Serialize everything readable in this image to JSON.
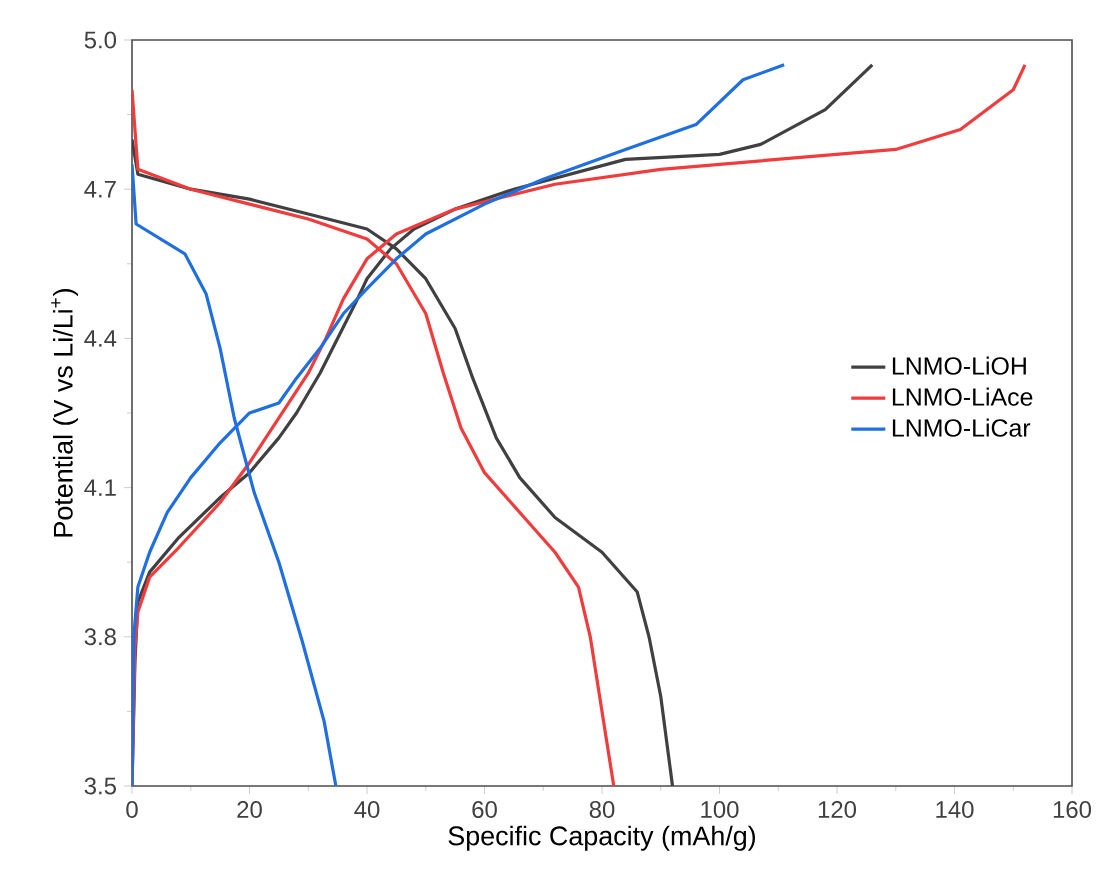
{
  "chart_data": {
    "type": "line",
    "xlabel": "Specific Capacity (mAh/g)",
    "ylabel": "Potential (V vs Li/Li$^{+}$)",
    "xlim": [
      0,
      160
    ],
    "xticks": [
      0,
      20,
      40,
      60,
      80,
      100,
      120,
      140,
      160
    ],
    "ylim": [
      3.5,
      5.0
    ],
    "yticks": [
      3.5,
      3.8,
      4.1,
      4.4,
      4.7,
      {
        "value": 5.0,
        "label": "5.0"
      }
    ],
    "grid": false,
    "legend": "right",
    "line_style": "solid",
    "marker": "none",
    "series": [
      {
        "name": "LNMO-LiOH",
        "color": "#404040",
        "x": [
          0,
          0.5,
          1,
          3,
          8,
          15,
          20,
          25,
          28,
          32,
          35,
          38,
          40,
          44,
          48,
          55,
          65,
          84,
          100,
          107,
          118,
          126
        ],
        "values": [
          3.5,
          3.75,
          3.87,
          3.93,
          4.0,
          4.08,
          4.13,
          4.2,
          4.25,
          4.33,
          4.4,
          4.47,
          4.52,
          4.58,
          4.62,
          4.66,
          4.7,
          4.76,
          4.77,
          4.79,
          4.86,
          4.95
        ]
      },
      {
        "color": "#404040",
        "x": [
          0,
          1,
          10,
          20,
          30,
          40,
          45,
          50,
          55,
          58,
          62,
          66,
          72,
          80,
          86,
          88,
          90,
          92
        ],
        "values": [
          4.8,
          4.73,
          4.7,
          4.68,
          4.65,
          4.62,
          4.58,
          4.52,
          4.42,
          4.32,
          4.2,
          4.12,
          4.04,
          3.97,
          3.89,
          3.8,
          3.68,
          3.5
        ]
      },
      {
        "name": "LNMO-LiAce",
        "color": "#f03c3c",
        "x": [
          0,
          0.5,
          1,
          3,
          8,
          15,
          20,
          25,
          30,
          33,
          36,
          40,
          45,
          55,
          72,
          90,
          110,
          130,
          141,
          150,
          152
        ],
        "values": [
          3.5,
          3.78,
          3.85,
          3.92,
          3.98,
          4.07,
          4.15,
          4.24,
          4.33,
          4.4,
          4.48,
          4.56,
          4.61,
          4.66,
          4.71,
          4.74,
          4.76,
          4.78,
          4.82,
          4.9,
          4.95
        ]
      },
      {
        "color": "#f03c3c",
        "x": [
          0,
          1,
          10,
          20,
          30,
          40,
          45,
          50,
          53,
          56,
          60,
          66,
          72,
          76,
          78,
          80,
          82
        ],
        "values": [
          4.9,
          4.74,
          4.7,
          4.67,
          4.64,
          4.6,
          4.55,
          4.45,
          4.33,
          4.22,
          4.13,
          4.05,
          3.97,
          3.9,
          3.8,
          3.65,
          3.5
        ]
      },
      {
        "name": "LNMO-LiCar",
        "color": "#1f6fe0",
        "x": [
          0,
          0.3,
          1,
          3,
          6,
          10,
          15,
          20,
          25,
          28,
          32,
          36,
          40,
          45,
          50,
          60,
          70,
          84,
          96,
          104,
          111
        ],
        "values": [
          3.5,
          3.8,
          3.9,
          3.97,
          4.05,
          4.12,
          4.19,
          4.25,
          4.27,
          4.32,
          4.38,
          4.45,
          4.5,
          4.56,
          4.61,
          4.67,
          4.72,
          4.78,
          4.83,
          4.92,
          4.95
        ]
      },
      {
        "color": "#1f6fe0",
        "x": [
          0,
          0.7,
          9,
          12.6,
          15,
          17.4,
          20.8,
          25,
          29,
          32.7,
          34.7
        ],
        "values": [
          4.75,
          4.63,
          4.57,
          4.49,
          4.38,
          4.24,
          4.09,
          3.95,
          3.79,
          3.63,
          3.5
        ]
      }
    ]
  }
}
